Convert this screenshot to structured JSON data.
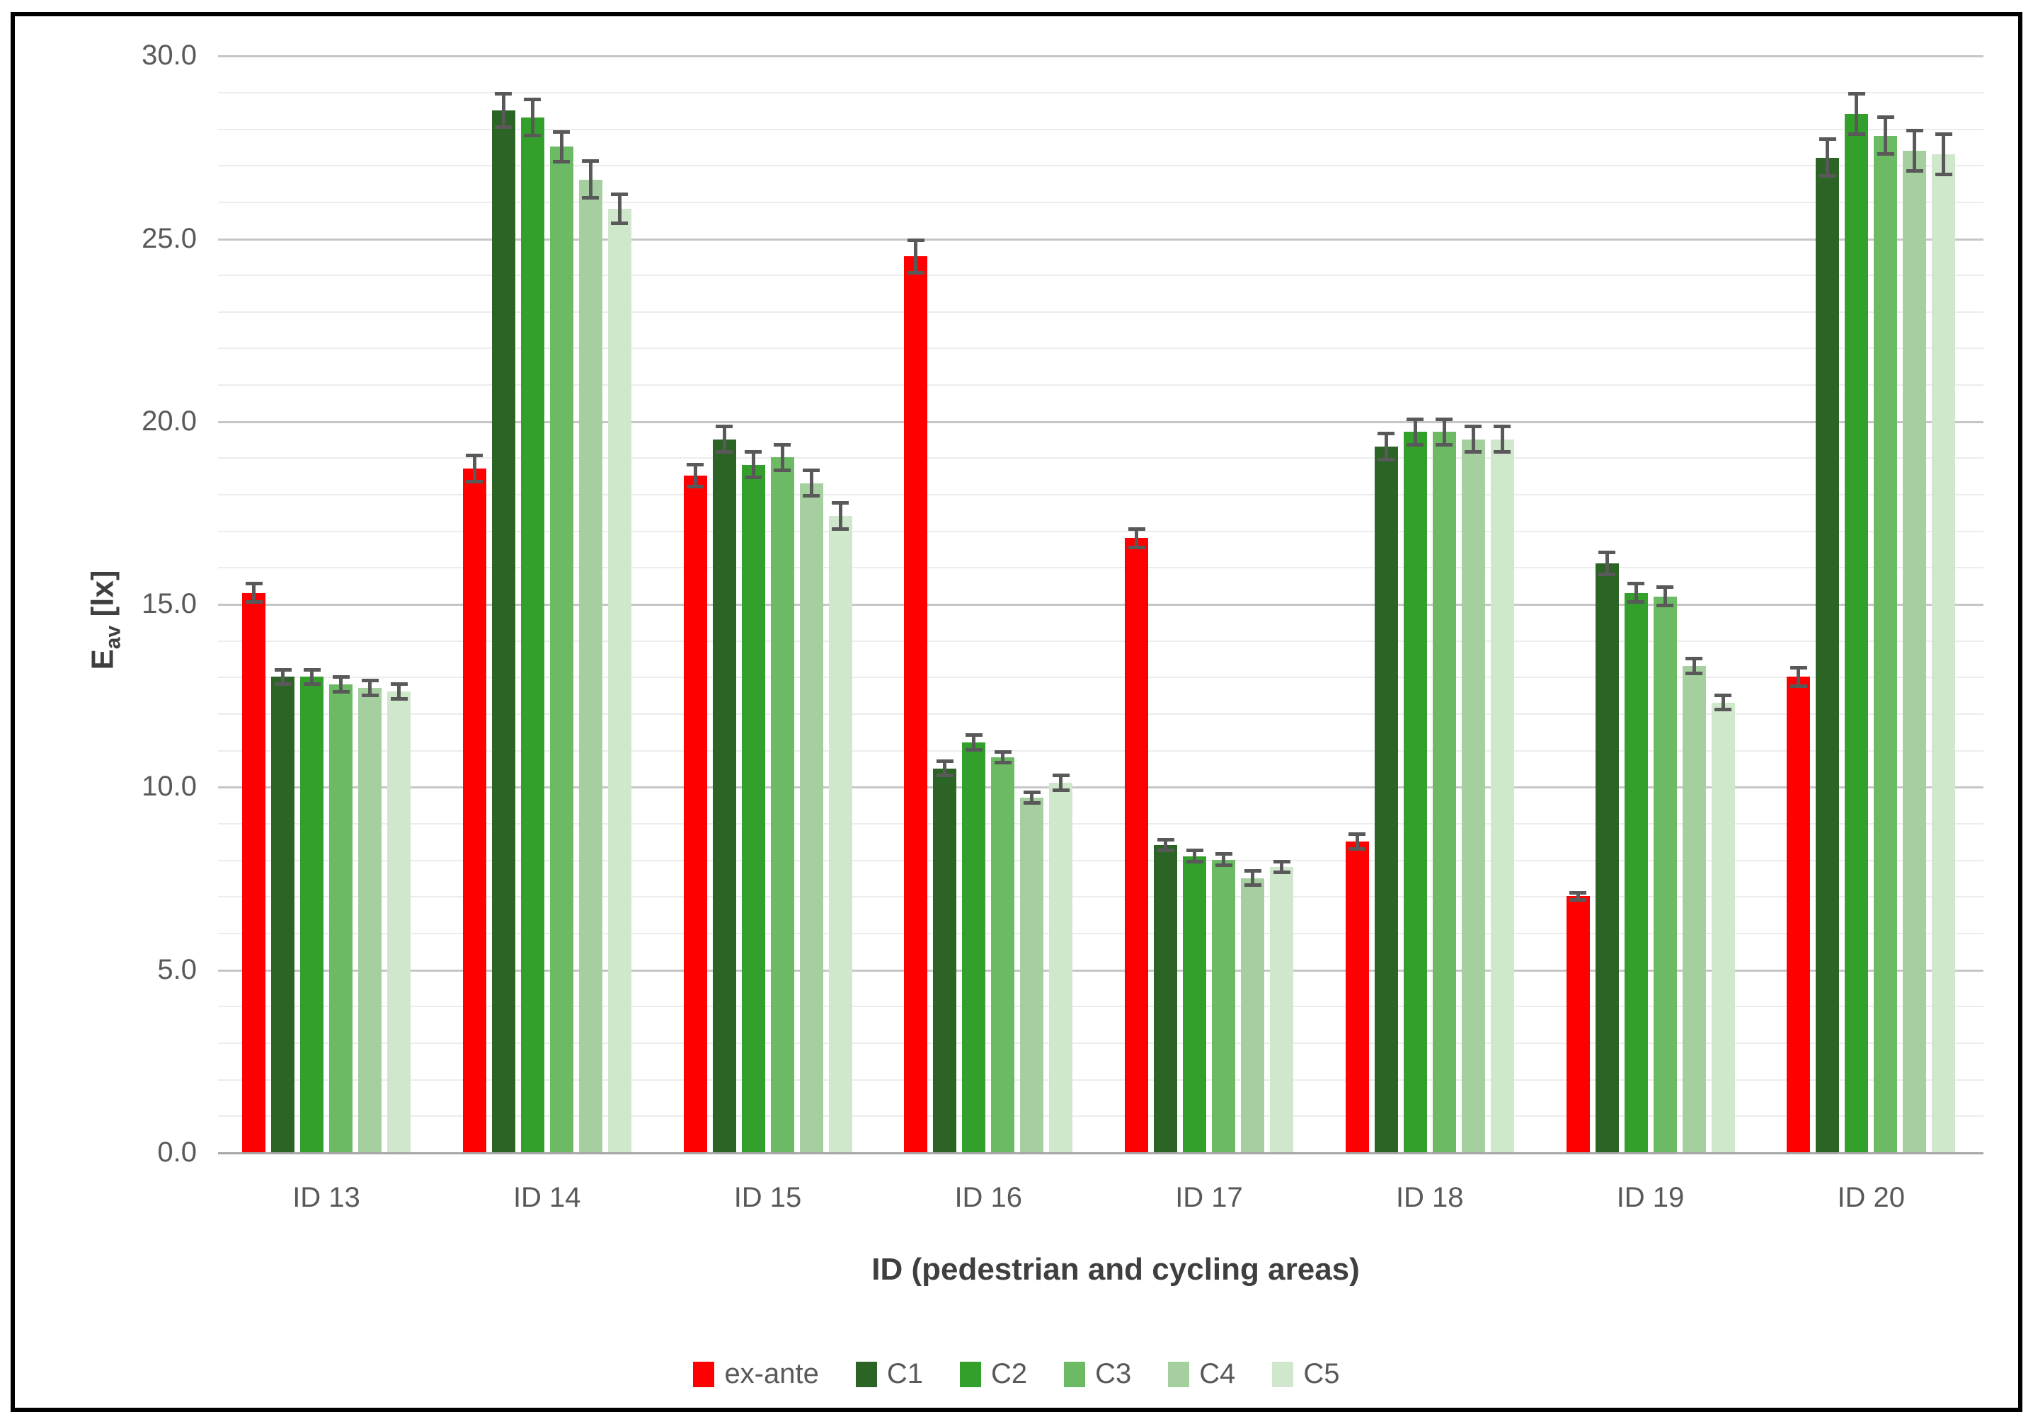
{
  "styles": {
    "background": "#ffffff",
    "figure_border": "#000000",
    "tick_text": "#595959",
    "axis_title_text": "#3f3f3f",
    "grid_minor": "#ececec",
    "grid_major": "#c6c6c6",
    "axis_line": "#a6a6a6",
    "error_bar": "#595959"
  },
  "chart_data": {
    "type": "bar",
    "title": "",
    "xlabel": "ID (pedestrian and cycling areas)",
    "ylabel_main": "E",
    "ylabel_sub": "av",
    "ylabel_unit": " [lx]",
    "ylim": [
      0,
      30
    ],
    "y_major_step": 5,
    "y_minor_step": 1,
    "y_tick_labels": [
      "0.0",
      "5.0",
      "10.0",
      "15.0",
      "20.0",
      "25.0",
      "30.0"
    ],
    "grid": true,
    "legend_position": "bottom",
    "error_bars": true,
    "categories": [
      "ID 13",
      "ID 14",
      "ID 15",
      "ID 16",
      "ID 17",
      "ID 18",
      "ID 19",
      "ID 20"
    ],
    "series": [
      {
        "name": "ex-ante",
        "color": "#ff0000",
        "values": [
          15.3,
          18.7,
          18.5,
          24.5,
          16.8,
          8.5,
          7.0,
          13.0
        ],
        "errors": [
          0.3,
          0.4,
          0.35,
          0.5,
          0.3,
          0.25,
          0.15,
          0.3
        ]
      },
      {
        "name": "C1",
        "color": "#2b6425",
        "values": [
          13.0,
          28.5,
          19.5,
          10.5,
          8.4,
          19.3,
          16.1,
          27.2
        ],
        "errors": [
          0.25,
          0.5,
          0.4,
          0.25,
          0.2,
          0.4,
          0.35,
          0.55
        ]
      },
      {
        "name": "C2",
        "color": "#34a02c",
        "values": [
          13.0,
          28.3,
          18.8,
          11.2,
          8.1,
          19.7,
          15.3,
          28.4
        ],
        "errors": [
          0.25,
          0.55,
          0.4,
          0.25,
          0.2,
          0.4,
          0.3,
          0.6
        ]
      },
      {
        "name": "C3",
        "color": "#6cbb64",
        "values": [
          12.8,
          27.5,
          19.0,
          10.8,
          8.0,
          19.7,
          15.2,
          27.8
        ],
        "errors": [
          0.25,
          0.45,
          0.4,
          0.2,
          0.2,
          0.4,
          0.3,
          0.55
        ]
      },
      {
        "name": "C4",
        "color": "#a6cfa0",
        "values": [
          12.7,
          26.6,
          18.3,
          9.7,
          7.5,
          19.5,
          13.3,
          27.4
        ],
        "errors": [
          0.25,
          0.55,
          0.4,
          0.2,
          0.25,
          0.4,
          0.25,
          0.6
        ]
      },
      {
        "name": "C5",
        "color": "#cfe8cb",
        "values": [
          12.6,
          25.8,
          17.4,
          10.1,
          7.8,
          19.5,
          12.3,
          27.3
        ],
        "errors": [
          0.25,
          0.45,
          0.4,
          0.25,
          0.2,
          0.4,
          0.25,
          0.6
        ]
      }
    ],
    "legend": [
      "ex-ante",
      "C1",
      "C2",
      "C3",
      "C4",
      "C5"
    ]
  }
}
